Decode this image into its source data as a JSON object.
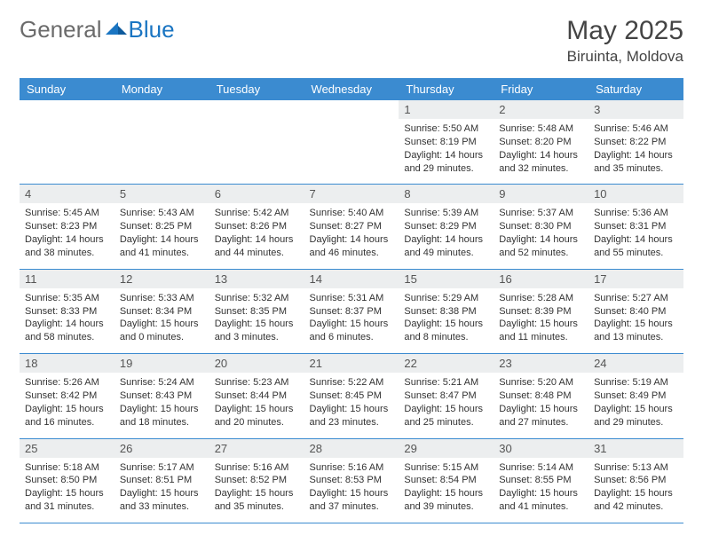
{
  "logo": {
    "part1": "General",
    "part2": "Blue"
  },
  "title": "May 2025",
  "location": "Biruinta, Moldova",
  "colors": {
    "header_bg": "#3b8bd0",
    "header_text": "#ffffff",
    "daynum_bg": "#eceeef",
    "border": "#3b8bd0",
    "logo_gray": "#6b6b6b",
    "logo_blue": "#1a75c2"
  },
  "weekdays": [
    "Sunday",
    "Monday",
    "Tuesday",
    "Wednesday",
    "Thursday",
    "Friday",
    "Saturday"
  ],
  "weeks": [
    [
      {
        "n": "",
        "sr": "",
        "ss": "",
        "dl": ""
      },
      {
        "n": "",
        "sr": "",
        "ss": "",
        "dl": ""
      },
      {
        "n": "",
        "sr": "",
        "ss": "",
        "dl": ""
      },
      {
        "n": "",
        "sr": "",
        "ss": "",
        "dl": ""
      },
      {
        "n": "1",
        "sr": "Sunrise: 5:50 AM",
        "ss": "Sunset: 8:19 PM",
        "dl": "Daylight: 14 hours and 29 minutes."
      },
      {
        "n": "2",
        "sr": "Sunrise: 5:48 AM",
        "ss": "Sunset: 8:20 PM",
        "dl": "Daylight: 14 hours and 32 minutes."
      },
      {
        "n": "3",
        "sr": "Sunrise: 5:46 AM",
        "ss": "Sunset: 8:22 PM",
        "dl": "Daylight: 14 hours and 35 minutes."
      }
    ],
    [
      {
        "n": "4",
        "sr": "Sunrise: 5:45 AM",
        "ss": "Sunset: 8:23 PM",
        "dl": "Daylight: 14 hours and 38 minutes."
      },
      {
        "n": "5",
        "sr": "Sunrise: 5:43 AM",
        "ss": "Sunset: 8:25 PM",
        "dl": "Daylight: 14 hours and 41 minutes."
      },
      {
        "n": "6",
        "sr": "Sunrise: 5:42 AM",
        "ss": "Sunset: 8:26 PM",
        "dl": "Daylight: 14 hours and 44 minutes."
      },
      {
        "n": "7",
        "sr": "Sunrise: 5:40 AM",
        "ss": "Sunset: 8:27 PM",
        "dl": "Daylight: 14 hours and 46 minutes."
      },
      {
        "n": "8",
        "sr": "Sunrise: 5:39 AM",
        "ss": "Sunset: 8:29 PM",
        "dl": "Daylight: 14 hours and 49 minutes."
      },
      {
        "n": "9",
        "sr": "Sunrise: 5:37 AM",
        "ss": "Sunset: 8:30 PM",
        "dl": "Daylight: 14 hours and 52 minutes."
      },
      {
        "n": "10",
        "sr": "Sunrise: 5:36 AM",
        "ss": "Sunset: 8:31 PM",
        "dl": "Daylight: 14 hours and 55 minutes."
      }
    ],
    [
      {
        "n": "11",
        "sr": "Sunrise: 5:35 AM",
        "ss": "Sunset: 8:33 PM",
        "dl": "Daylight: 14 hours and 58 minutes."
      },
      {
        "n": "12",
        "sr": "Sunrise: 5:33 AM",
        "ss": "Sunset: 8:34 PM",
        "dl": "Daylight: 15 hours and 0 minutes."
      },
      {
        "n": "13",
        "sr": "Sunrise: 5:32 AM",
        "ss": "Sunset: 8:35 PM",
        "dl": "Daylight: 15 hours and 3 minutes."
      },
      {
        "n": "14",
        "sr": "Sunrise: 5:31 AM",
        "ss": "Sunset: 8:37 PM",
        "dl": "Daylight: 15 hours and 6 minutes."
      },
      {
        "n": "15",
        "sr": "Sunrise: 5:29 AM",
        "ss": "Sunset: 8:38 PM",
        "dl": "Daylight: 15 hours and 8 minutes."
      },
      {
        "n": "16",
        "sr": "Sunrise: 5:28 AM",
        "ss": "Sunset: 8:39 PM",
        "dl": "Daylight: 15 hours and 11 minutes."
      },
      {
        "n": "17",
        "sr": "Sunrise: 5:27 AM",
        "ss": "Sunset: 8:40 PM",
        "dl": "Daylight: 15 hours and 13 minutes."
      }
    ],
    [
      {
        "n": "18",
        "sr": "Sunrise: 5:26 AM",
        "ss": "Sunset: 8:42 PM",
        "dl": "Daylight: 15 hours and 16 minutes."
      },
      {
        "n": "19",
        "sr": "Sunrise: 5:24 AM",
        "ss": "Sunset: 8:43 PM",
        "dl": "Daylight: 15 hours and 18 minutes."
      },
      {
        "n": "20",
        "sr": "Sunrise: 5:23 AM",
        "ss": "Sunset: 8:44 PM",
        "dl": "Daylight: 15 hours and 20 minutes."
      },
      {
        "n": "21",
        "sr": "Sunrise: 5:22 AM",
        "ss": "Sunset: 8:45 PM",
        "dl": "Daylight: 15 hours and 23 minutes."
      },
      {
        "n": "22",
        "sr": "Sunrise: 5:21 AM",
        "ss": "Sunset: 8:47 PM",
        "dl": "Daylight: 15 hours and 25 minutes."
      },
      {
        "n": "23",
        "sr": "Sunrise: 5:20 AM",
        "ss": "Sunset: 8:48 PM",
        "dl": "Daylight: 15 hours and 27 minutes."
      },
      {
        "n": "24",
        "sr": "Sunrise: 5:19 AM",
        "ss": "Sunset: 8:49 PM",
        "dl": "Daylight: 15 hours and 29 minutes."
      }
    ],
    [
      {
        "n": "25",
        "sr": "Sunrise: 5:18 AM",
        "ss": "Sunset: 8:50 PM",
        "dl": "Daylight: 15 hours and 31 minutes."
      },
      {
        "n": "26",
        "sr": "Sunrise: 5:17 AM",
        "ss": "Sunset: 8:51 PM",
        "dl": "Daylight: 15 hours and 33 minutes."
      },
      {
        "n": "27",
        "sr": "Sunrise: 5:16 AM",
        "ss": "Sunset: 8:52 PM",
        "dl": "Daylight: 15 hours and 35 minutes."
      },
      {
        "n": "28",
        "sr": "Sunrise: 5:16 AM",
        "ss": "Sunset: 8:53 PM",
        "dl": "Daylight: 15 hours and 37 minutes."
      },
      {
        "n": "29",
        "sr": "Sunrise: 5:15 AM",
        "ss": "Sunset: 8:54 PM",
        "dl": "Daylight: 15 hours and 39 minutes."
      },
      {
        "n": "30",
        "sr": "Sunrise: 5:14 AM",
        "ss": "Sunset: 8:55 PM",
        "dl": "Daylight: 15 hours and 41 minutes."
      },
      {
        "n": "31",
        "sr": "Sunrise: 5:13 AM",
        "ss": "Sunset: 8:56 PM",
        "dl": "Daylight: 15 hours and 42 minutes."
      }
    ]
  ]
}
